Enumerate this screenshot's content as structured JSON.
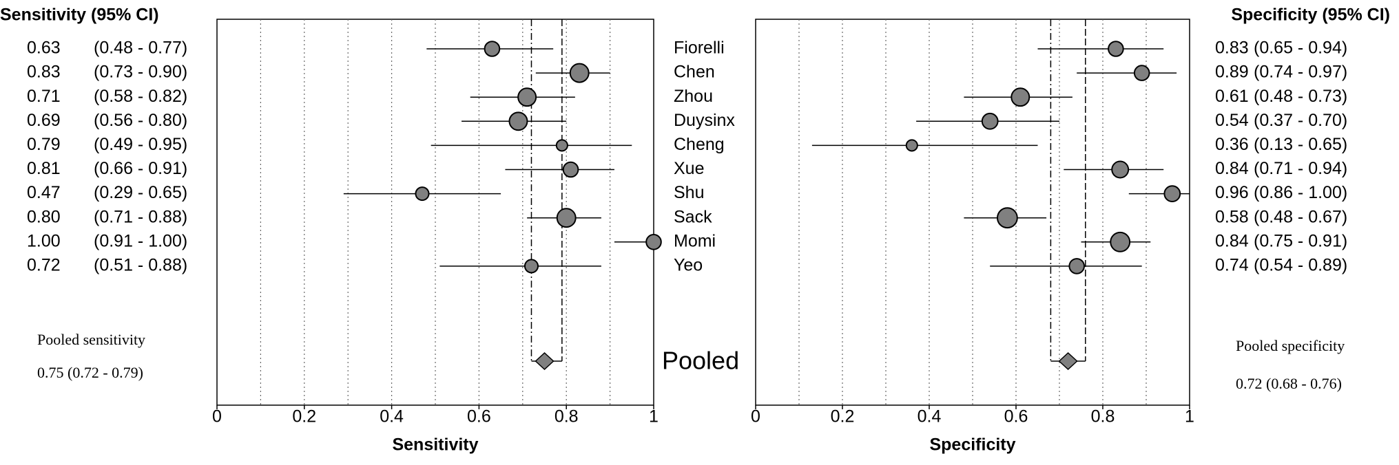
{
  "chart_data": {
    "type": "forest",
    "categories": [
      "Fiorelli",
      "Chen",
      "Zhou",
      "Duysinx",
      "Cheng",
      "Xue",
      "Shu",
      "Sack",
      "Momi",
      "Yeo"
    ],
    "pooled_name": "Pooled",
    "panels": [
      {
        "title": "Sensitivity (95% CI)",
        "xlabel": "Sensitivity",
        "xlim": [
          0,
          1
        ],
        "xticks": [
          0,
          0.2,
          0.4,
          0.6,
          0.8,
          1
        ],
        "grid": [
          0.1,
          0.2,
          0.3,
          0.4,
          0.5,
          0.6,
          0.7,
          0.8,
          0.9
        ],
        "values": [
          0.63,
          0.83,
          0.71,
          0.69,
          0.79,
          0.81,
          0.47,
          0.8,
          1.0,
          0.72
        ],
        "value_labels": [
          "0.63",
          "0.83",
          "0.71",
          "0.69",
          "0.79",
          "0.81",
          "0.47",
          "0.80",
          "1.00",
          "0.72"
        ],
        "lower": [
          0.48,
          0.73,
          0.58,
          0.56,
          0.49,
          0.66,
          0.29,
          0.71,
          0.91,
          0.51
        ],
        "upper": [
          0.77,
          0.9,
          0.82,
          0.8,
          0.95,
          0.91,
          0.65,
          0.88,
          1.0,
          0.88
        ],
        "ci_labels": [
          "(0.48 - 0.77)",
          "(0.73 - 0.90)",
          "(0.58 - 0.82)",
          "(0.56 - 0.80)",
          "(0.49 - 0.95)",
          "(0.66 - 0.91)",
          "(0.29 - 0.65)",
          "(0.71 - 0.88)",
          "(0.91 - 1.00)",
          "(0.51 - 0.88)"
        ],
        "weights": [
          9,
          14,
          13,
          13,
          5,
          9,
          7,
          14,
          9,
          7
        ],
        "pooled": {
          "label": "Pooled sensitivity",
          "value": 0.75,
          "lower": 0.72,
          "upper": 0.79,
          "value_label": "0.75 (0.72 - 0.79)"
        },
        "color": "#808080"
      },
      {
        "title": "Specificity (95% CI)",
        "xlabel": "Specificity",
        "xlim": [
          0,
          1
        ],
        "xticks": [
          0,
          0.2,
          0.4,
          0.6,
          0.8,
          1
        ],
        "grid": [
          0.1,
          0.2,
          0.3,
          0.4,
          0.5,
          0.6,
          0.7,
          0.8,
          0.9
        ],
        "values": [
          0.83,
          0.89,
          0.61,
          0.54,
          0.36,
          0.84,
          0.96,
          0.58,
          0.84,
          0.74
        ],
        "value_labels": [
          "0.83",
          "0.89",
          "0.61",
          "0.54",
          "0.36",
          "0.84",
          "0.96",
          "0.58",
          "0.84",
          "0.74"
        ],
        "lower": [
          0.65,
          0.74,
          0.48,
          0.37,
          0.13,
          0.71,
          0.86,
          0.48,
          0.75,
          0.54
        ],
        "upper": [
          0.94,
          0.97,
          0.73,
          0.7,
          0.65,
          0.94,
          1.0,
          0.67,
          0.91,
          0.89
        ],
        "ci_labels": [
          "(0.65 - 0.94)",
          "(0.74 - 0.97)",
          "(0.48 - 0.73)",
          "(0.37 - 0.70)",
          "(0.13 - 0.65)",
          "(0.71 - 0.94)",
          "(0.86 - 1.00)",
          "(0.48 - 0.67)",
          "(0.75 - 0.91)",
          "(0.54 - 0.89)"
        ],
        "weights": [
          9,
          9,
          13,
          10,
          5,
          11,
          10,
          16,
          15,
          9
        ],
        "pooled": {
          "label": "Pooled specificity",
          "value": 0.72,
          "lower": 0.68,
          "upper": 0.76,
          "value_label": "0.72 (0.68 - 0.76)"
        },
        "color": "#808080"
      }
    ]
  }
}
